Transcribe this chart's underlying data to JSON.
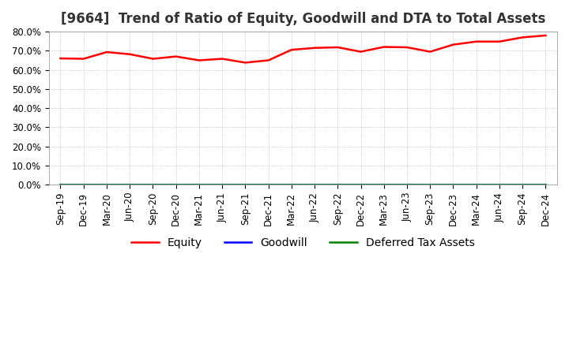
{
  "title": "[9664]  Trend of Ratio of Equity, Goodwill and DTA to Total Assets",
  "ylim": [
    0.0,
    0.8
  ],
  "yticks": [
    0.0,
    0.1,
    0.2,
    0.3,
    0.4,
    0.5,
    0.6,
    0.7,
    0.8
  ],
  "ytick_labels": [
    "0.0%",
    "10.0%",
    "20.0%",
    "30.0%",
    "40.0%",
    "50.0%",
    "60.0%",
    "70.0%",
    "80.0%"
  ],
  "x_labels": [
    "Sep-19",
    "Dec-19",
    "Mar-20",
    "Jun-20",
    "Sep-20",
    "Dec-20",
    "Mar-21",
    "Jun-21",
    "Sep-21",
    "Dec-21",
    "Mar-22",
    "Jun-22",
    "Sep-22",
    "Dec-22",
    "Mar-23",
    "Jun-23",
    "Sep-23",
    "Dec-23",
    "Mar-24",
    "Jun-24",
    "Sep-24",
    "Dec-24"
  ],
  "equity": [
    0.66,
    0.658,
    0.693,
    0.682,
    0.658,
    0.67,
    0.65,
    0.658,
    0.638,
    0.65,
    0.705,
    0.715,
    0.718,
    0.695,
    0.72,
    0.718,
    0.695,
    0.732,
    0.748,
    0.748,
    0.77,
    0.78
  ],
  "goodwill": [
    0.0,
    0.0,
    0.0,
    0.0,
    0.0,
    0.0,
    0.0,
    0.0,
    0.0,
    0.0,
    0.0,
    0.0,
    0.0,
    0.0,
    0.0,
    0.0,
    0.0,
    0.0,
    0.0,
    0.0,
    0.0,
    0.0
  ],
  "dta": [
    0.0,
    0.0,
    0.0,
    0.0,
    0.0,
    0.0,
    0.0,
    0.0,
    0.0,
    0.0,
    0.0,
    0.0,
    0.0,
    0.0,
    0.0,
    0.0,
    0.0,
    0.0,
    0.0,
    0.0,
    0.0,
    0.0
  ],
  "equity_color": "#ff0000",
  "goodwill_color": "#0000ff",
  "dta_color": "#008000",
  "background_color": "#ffffff",
  "grid_color": "#aaaaaa",
  "title_fontsize": 12,
  "tick_fontsize": 8.5,
  "legend_fontsize": 10
}
